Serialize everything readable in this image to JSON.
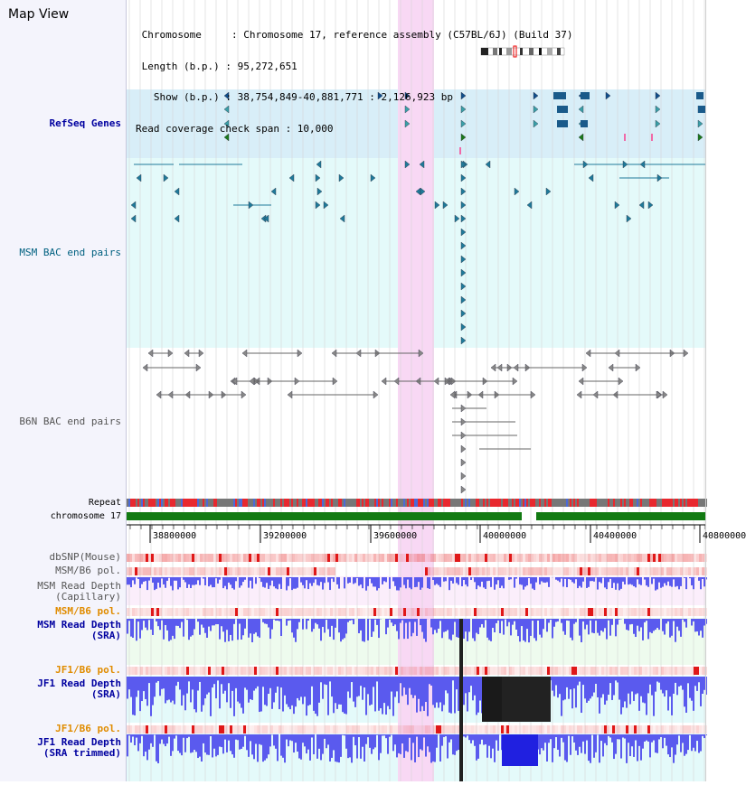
{
  "title": "Map View",
  "info": {
    "line1": " Chromosome     : Chromosome 17, reference assembly (C57BL/6J) (Build 37)",
    "line2": " Length (b.p.) : 95,272,651",
    "line3": "   Show (b.p.) : 38,754,849-40,881,771 : 2,126,923 bp",
    "line4": "Read coverage check span : 10,000"
  },
  "tracks": {
    "refseq": "RefSeq Genes",
    "msm_bac": "MSM BAC end pairs",
    "b6n_bac": "B6N BAC end pairs",
    "repeat": "Repeat",
    "chromosome": "chromosome 17",
    "dbsnp": "dbSNP(Mouse)",
    "msm_b6_pol_1": "MSM/B6 pol.",
    "msm_depth_cap_1": "MSM Read Depth",
    "msm_depth_cap_2": "(Capillary)",
    "msm_b6_pol_2": "MSM/B6 pol.",
    "msm_depth_sra_1": "MSM Read Depth",
    "msm_depth_sra_2": "(SRA)",
    "jf1_b6_pol_1": "JF1/B6 pol.",
    "jf1_depth_sra_1": "JF1 Read Depth",
    "jf1_depth_sra_2": "(SRA)",
    "jf1_b6_pol_2": "JF1/B6 pol.",
    "jf1_depth_trim_1": "JF1 Read Depth",
    "jf1_depth_trim_2": "(SRA trimmed)"
  },
  "axis": {
    "ticks": [
      "38800000",
      "39200000",
      "39600000",
      "40000000",
      "40400000",
      "40800000"
    ]
  },
  "colors": {
    "highlight": "#f8d8f4",
    "refseq_bg": "#d8eef8",
    "msm_bg": "#e4fafa",
    "depth_fill": "#5a5aee",
    "snp_red": "#e8282e",
    "chromosome_green": "#127a12"
  }
}
